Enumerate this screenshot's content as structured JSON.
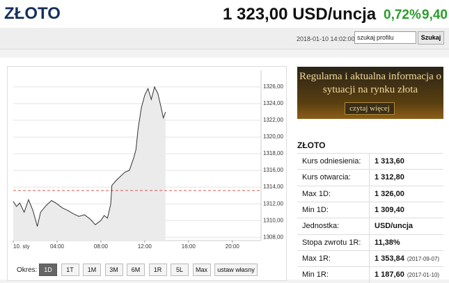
{
  "header": {
    "title": "ZŁOTO",
    "price": "1 323,00 USD/uncja",
    "change_pct": "0,72%",
    "change": "9,40",
    "timestamp": "2018-01-10 14:02:00",
    "search_placeholder": "szukaj profilu",
    "search_button": "Szukaj"
  },
  "ad": {
    "text": "Regularna i aktualna informacja o sytuacji na rynku złota",
    "button": "czytaj więcej"
  },
  "sidebar": {
    "title": "ZŁOTO",
    "rows": [
      {
        "label": "Kurs odniesienia:",
        "value": "1 313,60"
      },
      {
        "label": "Kurs otwarcia:",
        "value": "1 312,80"
      },
      {
        "label": "Max 1D:",
        "value": "1 326,00"
      },
      {
        "label": "Min 1D:",
        "value": "1 309,40"
      },
      {
        "label": "Jednostka:",
        "value": "USD/uncja"
      },
      {
        "label": "Stopa zwrotu 1R:",
        "value": "11,38%"
      },
      {
        "label": "Max 1R:",
        "value": "1 353,84",
        "date": "(2017-09-07)"
      },
      {
        "label": "Min 1R:",
        "value": "1 187,60",
        "date": "(2017-01-10)"
      }
    ]
  },
  "periods": {
    "label": "Okres:",
    "options": [
      "1D",
      "1T",
      "1M",
      "3M",
      "6M",
      "1R",
      "5L",
      "Max",
      "ustaw własny"
    ],
    "selected": 0
  },
  "chart_data": {
    "type": "line",
    "x": [
      0,
      0.3,
      0.6,
      1.0,
      1.4,
      1.8,
      2.2,
      2.5,
      3.0,
      3.5,
      4.0,
      4.5,
      5.0,
      5.5,
      6.0,
      6.5,
      7.0,
      7.5,
      8.0,
      8.3,
      8.6,
      8.9,
      9.0,
      9.4,
      9.8,
      10.2,
      10.6,
      11.0,
      11.2,
      11.4,
      11.7,
      12.0,
      12.3,
      12.6,
      12.9,
      13.2,
      13.5,
      13.7,
      13.9
    ],
    "series": [
      {
        "color": "#333333",
        "values": [
          1312.3,
          1311.7,
          1312.1,
          1311.0,
          1312.5,
          1311.2,
          1309.3,
          1311.0,
          1311.8,
          1312.4,
          1312.0,
          1311.5,
          1311.2,
          1310.8,
          1310.5,
          1310.7,
          1310.2,
          1309.5,
          1310.0,
          1310.6,
          1310.3,
          1312.0,
          1314.2,
          1314.8,
          1315.3,
          1315.8,
          1316.0,
          1317.5,
          1318.5,
          1321.0,
          1323.5,
          1325.0,
          1325.8,
          1324.5,
          1326.0,
          1325.2,
          1323.5,
          1322.3,
          1323.0
        ]
      }
    ],
    "reference_line": 1313.6,
    "reference_color": "#d9534f",
    "area_color": "#ebebeb",
    "xlim": [
      0,
      23
    ],
    "xticks": [
      {
        "value": 0,
        "label": "10. sty"
      },
      {
        "value": 4,
        "label": "04:00"
      },
      {
        "value": 8,
        "label": "08:00"
      },
      {
        "value": 12,
        "label": "12:00"
      },
      {
        "value": 16,
        "label": "16:00"
      },
      {
        "value": 20,
        "label": "20:00"
      }
    ],
    "ylim": [
      1307.6,
      1328
    ],
    "yticks": [
      {
        "value": 1308,
        "label": "1308,00"
      },
      {
        "value": 1310,
        "label": "1310,00"
      },
      {
        "value": 1312,
        "label": "1312,00"
      },
      {
        "value": 1314,
        "label": "1314,00"
      },
      {
        "value": 1316,
        "label": "1316,00"
      },
      {
        "value": 1318,
        "label": "1318,00"
      },
      {
        "value": 1320,
        "label": "1320,00"
      },
      {
        "value": 1322,
        "label": "1322,00"
      },
      {
        "value": 1324,
        "label": "1324,00"
      },
      {
        "value": 1326,
        "label": "1326,00"
      }
    ],
    "grid": true
  }
}
